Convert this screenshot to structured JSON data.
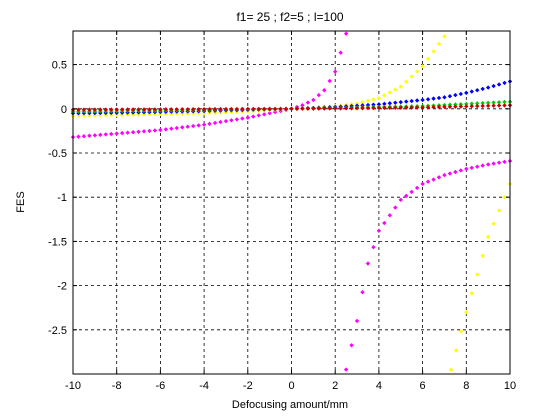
{
  "chart_data": {
    "type": "scatter",
    "title": "f1= 25 ; f2=5 ;  l=100",
    "xlabel": "Defocusing amount/mm",
    "ylabel": "FES",
    "xlim": [
      -10,
      10
    ],
    "ylim": [
      -3.0,
      0.88
    ],
    "xticks": [
      -10,
      -8,
      -6,
      -4,
      -2,
      0,
      2,
      4,
      6,
      8,
      10
    ],
    "xtick_labels": [
      "-10",
      "-8",
      "-6",
      "-4",
      "-2",
      "0",
      "2",
      "4",
      "6",
      "8",
      "10"
    ],
    "yticks": [
      0.5,
      0,
      -0.5,
      -1,
      -1.5,
      -2,
      -2.5
    ],
    "ytick_labels": [
      "0.5",
      "0",
      "-0.5",
      "-1",
      "-1.5",
      "-2",
      "-2.5"
    ],
    "grid": true,
    "grid_style": "dashed",
    "marker": "diamond",
    "series": [
      {
        "color": "#ff00ff",
        "points": [
          [
            -10,
            -0.32
          ],
          [
            -9,
            -0.3
          ],
          [
            -8,
            -0.28
          ],
          [
            -7,
            -0.26
          ],
          [
            -6,
            -0.24
          ],
          [
            -5,
            -0.21
          ],
          [
            -4,
            -0.18
          ],
          [
            -3,
            -0.14
          ],
          [
            -2,
            -0.1
          ],
          [
            -1,
            -0.05
          ],
          [
            0,
            0
          ],
          [
            0.5,
            0.04
          ],
          [
            1,
            0.1
          ],
          [
            1.5,
            0.21
          ],
          [
            2,
            0.42
          ],
          [
            2.5,
            0.85
          ],
          [
            2.5,
            -2.95
          ],
          [
            3,
            -2.4
          ],
          [
            3.5,
            -1.75
          ],
          [
            4,
            -1.38
          ],
          [
            5,
            -1.03
          ],
          [
            6,
            -0.85
          ],
          [
            7,
            -0.75
          ],
          [
            8,
            -0.68
          ],
          [
            9,
            -0.63
          ],
          [
            10,
            -0.59
          ]
        ]
      },
      {
        "color": "#ffff00",
        "points": [
          [
            -10,
            -0.08
          ],
          [
            -8,
            -0.07
          ],
          [
            -6,
            -0.06
          ],
          [
            -4,
            -0.05
          ],
          [
            -2,
            -0.03
          ],
          [
            0,
            0
          ],
          [
            1,
            0.01
          ],
          [
            2,
            0.03
          ],
          [
            3,
            0.06
          ],
          [
            4,
            0.12
          ],
          [
            5,
            0.25
          ],
          [
            6,
            0.48
          ],
          [
            7,
            0.82
          ],
          [
            7.3,
            -2.95
          ],
          [
            8,
            -2.3
          ],
          [
            9,
            -1.45
          ],
          [
            10,
            -0.85
          ]
        ]
      },
      {
        "color": "#0000ff",
        "points": [
          [
            -10,
            -0.05
          ],
          [
            -8,
            -0.045
          ],
          [
            -6,
            -0.035
          ],
          [
            -4,
            -0.025
          ],
          [
            -2,
            -0.012
          ],
          [
            0,
            0
          ],
          [
            2,
            0.02
          ],
          [
            4,
            0.05
          ],
          [
            6,
            0.1
          ],
          [
            7,
            0.13
          ],
          [
            8,
            0.18
          ],
          [
            9,
            0.24
          ],
          [
            10,
            0.31
          ]
        ]
      },
      {
        "color": "#00cc00",
        "points": [
          [
            -10,
            -0.03
          ],
          [
            -8,
            -0.025
          ],
          [
            -6,
            -0.02
          ],
          [
            -4,
            -0.013
          ],
          [
            -2,
            -0.006
          ],
          [
            0,
            0
          ],
          [
            2,
            0.01
          ],
          [
            4,
            0.02
          ],
          [
            6,
            0.03
          ],
          [
            8,
            0.055
          ],
          [
            10,
            0.08
          ]
        ]
      },
      {
        "color": "#cc0000",
        "points": [
          [
            -10,
            -0.01
          ],
          [
            -6,
            -0.007
          ],
          [
            -2,
            -0.002
          ],
          [
            0,
            0
          ],
          [
            2,
            0.004
          ],
          [
            6,
            0.015
          ],
          [
            10,
            0.04
          ]
        ]
      }
    ]
  }
}
